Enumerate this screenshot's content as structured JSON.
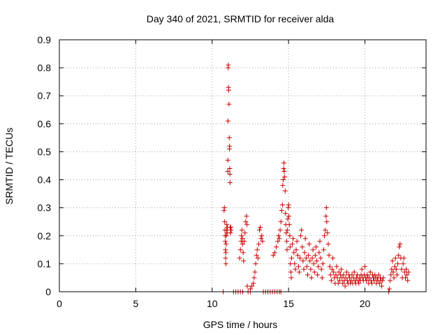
{
  "chart_data": {
    "type": "scatter",
    "title": "Day 340 of 2021, SRMTID for receiver alda",
    "xlabel": "GPS time / hours",
    "ylabel": "SRMTID / TECUs",
    "xlim": [
      0,
      24
    ],
    "ylim": [
      0,
      0.9
    ],
    "xticks": [
      0,
      5,
      10,
      15,
      20
    ],
    "xtick_labels": [
      "0",
      "5",
      "10",
      "15",
      "20"
    ],
    "yticks": [
      0,
      0.1,
      0.2,
      0.3,
      0.4,
      0.5,
      0.6,
      0.7,
      0.8,
      0.9
    ],
    "ytick_labels": [
      "0",
      "0.1",
      "0.2",
      "0.3",
      "0.4",
      "0.5",
      "0.6",
      "0.7",
      "0.8",
      "0.9"
    ],
    "grid": true,
    "marker": "plus",
    "series": [
      {
        "name": "SRMTID",
        "color": "#cc0000",
        "points": [
          [
            10.72,
            0.0
          ],
          [
            10.78,
            0.29
          ],
          [
            10.8,
            0.3
          ],
          [
            10.82,
            0.25
          ],
          [
            10.84,
            0.22
          ],
          [
            10.85,
            0.2
          ],
          [
            10.86,
            0.18
          ],
          [
            10.87,
            0.15
          ],
          [
            10.88,
            0.12
          ],
          [
            10.9,
            0.1
          ],
          [
            10.9,
            0.14
          ],
          [
            10.92,
            0.17
          ],
          [
            10.93,
            0.2
          ],
          [
            10.95,
            0.22
          ],
          [
            10.96,
            0.24
          ],
          [
            10.98,
            0.21
          ],
          [
            11.0,
            0.23
          ],
          [
            11.02,
            0.43
          ],
          [
            11.03,
            0.47
          ],
          [
            11.04,
            0.61
          ],
          [
            11.05,
            0.8
          ],
          [
            11.06,
            0.81
          ],
          [
            11.07,
            0.73
          ],
          [
            11.08,
            0.72
          ],
          [
            11.1,
            0.67
          ],
          [
            11.12,
            0.55
          ],
          [
            11.13,
            0.51
          ],
          [
            11.14,
            0.52
          ],
          [
            11.15,
            0.44
          ],
          [
            11.16,
            0.42
          ],
          [
            11.17,
            0.39
          ],
          [
            11.18,
            0.23
          ],
          [
            11.2,
            0.21
          ],
          [
            11.22,
            0.23
          ],
          [
            11.25,
            0.22
          ],
          [
            11.4,
            0.0
          ],
          [
            11.55,
            0.0
          ],
          [
            11.7,
            0.0
          ],
          [
            11.85,
            0.0
          ],
          [
            12.0,
            0.0
          ],
          [
            11.8,
            0.12
          ],
          [
            11.85,
            0.15
          ],
          [
            11.9,
            0.18
          ],
          [
            11.92,
            0.2
          ],
          [
            11.95,
            0.22
          ],
          [
            11.98,
            0.19
          ],
          [
            12.0,
            0.17
          ],
          [
            12.03,
            0.14
          ],
          [
            12.06,
            0.11
          ],
          [
            12.1,
            0.18
          ],
          [
            12.15,
            0.21
          ],
          [
            12.2,
            0.25
          ],
          [
            12.25,
            0.27
          ],
          [
            12.28,
            0.24
          ],
          [
            12.3,
            0.02
          ],
          [
            12.35,
            0.0
          ],
          [
            12.5,
            0.0
          ],
          [
            12.5,
            0.01
          ],
          [
            12.6,
            0.02
          ],
          [
            12.7,
            0.03
          ],
          [
            12.75,
            0.05
          ],
          [
            12.8,
            0.07
          ],
          [
            12.85,
            0.1
          ],
          [
            12.9,
            0.13
          ],
          [
            12.95,
            0.15
          ],
          [
            13.0,
            0.12
          ],
          [
            13.05,
            0.17
          ],
          [
            13.1,
            0.22
          ],
          [
            13.15,
            0.23
          ],
          [
            13.2,
            0.19
          ],
          [
            13.25,
            0.2
          ],
          [
            13.3,
            0.18
          ],
          [
            13.35,
            0.0
          ],
          [
            13.5,
            0.0
          ],
          [
            13.65,
            0.0
          ],
          [
            13.8,
            0.0
          ],
          [
            13.95,
            0.0
          ],
          [
            14.1,
            0.0
          ],
          [
            14.25,
            0.0
          ],
          [
            14.4,
            0.0
          ],
          [
            14.5,
            0.0
          ],
          [
            14.0,
            0.13
          ],
          [
            14.1,
            0.14
          ],
          [
            14.2,
            0.16
          ],
          [
            14.3,
            0.18
          ],
          [
            14.35,
            0.2
          ],
          [
            14.4,
            0.19
          ],
          [
            14.45,
            0.22
          ],
          [
            14.5,
            0.25
          ],
          [
            14.55,
            0.29
          ],
          [
            14.6,
            0.31
          ],
          [
            14.62,
            0.38
          ],
          [
            14.65,
            0.4
          ],
          [
            14.68,
            0.44
          ],
          [
            14.7,
            0.46
          ],
          [
            14.72,
            0.43
          ],
          [
            14.75,
            0.41
          ],
          [
            14.78,
            0.36
          ],
          [
            14.8,
            0.28
          ],
          [
            14.82,
            0.24
          ],
          [
            14.85,
            0.21
          ],
          [
            14.88,
            0.18
          ],
          [
            14.9,
            0.15
          ],
          [
            14.92,
            0.22
          ],
          [
            14.95,
            0.26
          ],
          [
            14.98,
            0.3
          ],
          [
            15.0,
            0.31
          ],
          [
            15.02,
            0.27
          ],
          [
            15.05,
            0.24
          ],
          [
            15.08,
            0.2
          ],
          [
            15.1,
            0.16
          ],
          [
            15.12,
            0.1
          ],
          [
            15.15,
            0.07
          ],
          [
            15.18,
            0.05
          ],
          [
            15.2,
            0.12
          ],
          [
            15.25,
            0.17
          ],
          [
            15.3,
            0.19
          ],
          [
            15.35,
            0.14
          ],
          [
            15.4,
            0.1
          ],
          [
            15.45,
            0.08
          ],
          [
            15.5,
            0.15
          ],
          [
            15.55,
            0.18
          ],
          [
            15.6,
            0.13
          ],
          [
            15.65,
            0.09
          ],
          [
            15.7,
            0.07
          ],
          [
            15.75,
            0.12
          ],
          [
            15.8,
            0.2
          ],
          [
            15.85,
            0.22
          ],
          [
            15.9,
            0.16
          ],
          [
            15.95,
            0.11
          ],
          [
            16.0,
            0.08
          ],
          [
            16.05,
            0.14
          ],
          [
            16.1,
            0.19
          ],
          [
            16.15,
            0.12
          ],
          [
            16.2,
            0.09
          ],
          [
            16.25,
            0.06
          ],
          [
            16.3,
            0.13
          ],
          [
            16.35,
            0.17
          ],
          [
            16.4,
            0.11
          ],
          [
            16.45,
            0.08
          ],
          [
            16.5,
            0.05
          ],
          [
            16.55,
            0.12
          ],
          [
            16.6,
            0.15
          ],
          [
            16.65,
            0.1
          ],
          [
            16.7,
            0.07
          ],
          [
            16.75,
            0.13
          ],
          [
            16.8,
            0.16
          ],
          [
            16.85,
            0.11
          ],
          [
            16.9,
            0.06
          ],
          [
            16.95,
            0.09
          ],
          [
            17.0,
            0.14
          ],
          [
            17.05,
            0.18
          ],
          [
            17.1,
            0.12
          ],
          [
            17.15,
            0.08
          ],
          [
            17.2,
            0.05
          ],
          [
            17.25,
            0.1
          ],
          [
            17.3,
            0.15
          ],
          [
            17.35,
            0.2
          ],
          [
            17.4,
            0.22
          ],
          [
            17.45,
            0.27
          ],
          [
            17.48,
            0.3
          ],
          [
            17.5,
            0.25
          ],
          [
            17.55,
            0.21
          ],
          [
            17.6,
            0.17
          ],
          [
            17.65,
            0.13
          ],
          [
            17.7,
            0.09
          ],
          [
            17.75,
            0.06
          ],
          [
            17.8,
            0.04
          ],
          [
            17.85,
            0.08
          ],
          [
            17.9,
            0.12
          ],
          [
            17.95,
            0.07
          ],
          [
            18.0,
            0.05
          ],
          [
            18.05,
            0.03
          ],
          [
            18.1,
            0.06
          ],
          [
            18.15,
            0.09
          ],
          [
            18.2,
            0.05
          ],
          [
            18.25,
            0.03
          ],
          [
            18.3,
            0.07
          ],
          [
            18.35,
            0.04
          ],
          [
            18.4,
            0.06
          ],
          [
            18.45,
            0.08
          ],
          [
            18.5,
            0.05
          ],
          [
            18.55,
            0.03
          ],
          [
            18.6,
            0.06
          ],
          [
            18.65,
            0.04
          ],
          [
            18.7,
            0.02
          ],
          [
            18.75,
            0.05
          ],
          [
            18.8,
            0.07
          ],
          [
            18.85,
            0.04
          ],
          [
            18.9,
            0.03
          ],
          [
            18.95,
            0.06
          ],
          [
            19.0,
            0.05
          ],
          [
            19.05,
            0.03
          ],
          [
            19.1,
            0.04
          ],
          [
            19.15,
            0.06
          ],
          [
            19.2,
            0.03
          ],
          [
            19.25,
            0.05
          ],
          [
            19.3,
            0.07
          ],
          [
            19.35,
            0.04
          ],
          [
            19.4,
            0.03
          ],
          [
            19.45,
            0.05
          ],
          [
            19.5,
            0.06
          ],
          [
            19.55,
            0.04
          ],
          [
            19.6,
            0.03
          ],
          [
            19.65,
            0.05
          ],
          [
            19.7,
            0.04
          ],
          [
            19.75,
            0.06
          ],
          [
            19.8,
            0.08
          ],
          [
            19.85,
            0.05
          ],
          [
            19.9,
            0.04
          ],
          [
            19.95,
            0.06
          ],
          [
            20.0,
            0.09
          ],
          [
            20.05,
            0.05
          ],
          [
            20.1,
            0.04
          ],
          [
            20.15,
            0.06
          ],
          [
            20.2,
            0.05
          ],
          [
            20.25,
            0.03
          ],
          [
            20.3,
            0.05
          ],
          [
            20.35,
            0.07
          ],
          [
            20.4,
            0.04
          ],
          [
            20.45,
            0.03
          ],
          [
            20.5,
            0.06
          ],
          [
            20.55,
            0.05
          ],
          [
            20.6,
            0.04
          ],
          [
            20.65,
            0.06
          ],
          [
            20.7,
            0.05
          ],
          [
            20.75,
            0.03
          ],
          [
            20.8,
            0.05
          ],
          [
            20.85,
            0.04
          ],
          [
            20.9,
            0.06
          ],
          [
            20.95,
            0.03
          ],
          [
            21.0,
            0.05
          ],
          [
            21.05,
            0.04
          ],
          [
            21.1,
            0.02
          ],
          [
            21.15,
            0.04
          ],
          [
            21.2,
            0.05
          ],
          [
            21.55,
            0.0
          ],
          [
            21.6,
            0.01
          ],
          [
            21.65,
            0.04
          ],
          [
            21.7,
            0.06
          ],
          [
            21.75,
            0.08
          ],
          [
            21.8,
            0.11
          ],
          [
            21.85,
            0.07
          ],
          [
            21.9,
            0.05
          ],
          [
            21.95,
            0.09
          ],
          [
            22.0,
            0.12
          ],
          [
            22.05,
            0.08
          ],
          [
            22.1,
            0.06
          ],
          [
            22.15,
            0.1
          ],
          [
            22.2,
            0.13
          ],
          [
            22.25,
            0.16
          ],
          [
            22.3,
            0.17
          ],
          [
            22.35,
            0.12
          ],
          [
            22.4,
            0.08
          ],
          [
            22.45,
            0.05
          ],
          [
            22.5,
            0.1
          ],
          [
            22.55,
            0.12
          ],
          [
            22.6,
            0.07
          ],
          [
            22.65,
            0.05
          ],
          [
            22.7,
            0.08
          ],
          [
            22.75,
            0.06
          ],
          [
            22.8,
            0.04
          ],
          [
            22.85,
            0.07
          ]
        ]
      }
    ]
  }
}
